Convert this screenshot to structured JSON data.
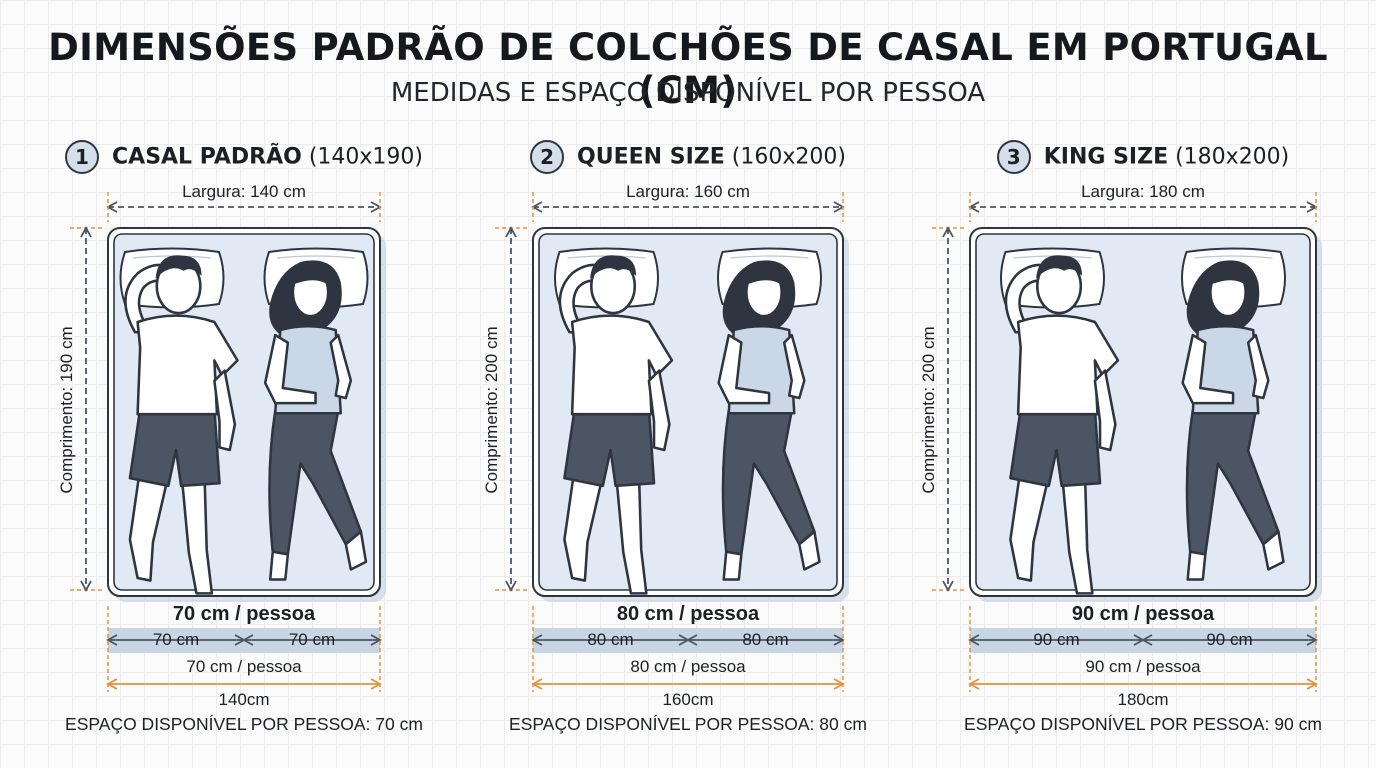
{
  "title": "DIMENSÕES PADRÃO DE COLCHÕES DE CASAL EM PORTUGAL (CM)",
  "subtitle": "MEDIDAS E ESPAÇO DISPONÍVEL POR PESSOA",
  "colors": {
    "mattress": "#e1eaf4",
    "outline": "#2e3540",
    "dim_dark": "#4a5563",
    "dim_orange": "#e8913a",
    "shirt": "#ffffff",
    "pants": "#4b5563",
    "woman_top": "#c9d7e6",
    "band": "#c8d6e4"
  },
  "panels": [
    {
      "number": "1",
      "name": "CASAL PADRÃO",
      "dims": "(140x190)",
      "width_label": "Largura: 140 cm",
      "length_label": "Comprimento: 190 cm",
      "per_person_bold": "70 cm / pessoa",
      "half_left": "70 cm",
      "half_right": "70 cm",
      "per_person": "70 cm / pessoa",
      "total": "140cm",
      "space_text": "ESPAÇO DISPONÍVEL POR PESSOA: 70 cm",
      "icons": [
        "man-sleeping-icon",
        "woman-sleeping-icon",
        "pillow-icon"
      ]
    },
    {
      "number": "2",
      "name": "QUEEN SIZE",
      "dims": "(160x200)",
      "width_label": "Largura: 160 cm",
      "length_label": "Comprimento: 200 cm",
      "per_person_bold": "80 cm / pessoa",
      "half_left": "80 cm",
      "half_right": "80 cm",
      "per_person": "80 cm / pessoa",
      "total": "160cm",
      "space_text": "ESPAÇO DISPONÍVEL POR PESSOA: 80 cm",
      "icons": [
        "man-sleeping-icon",
        "woman-sleeping-icon",
        "pillow-icon"
      ]
    },
    {
      "number": "3",
      "name": "KING SIZE",
      "dims": "(180x200)",
      "width_label": "Largura: 180 cm",
      "length_label": "Comprimento: 200 cm",
      "per_person_bold": "90 cm / pessoa",
      "half_left": "90 cm",
      "half_right": "90 cm",
      "per_person": "90 cm / pessoa",
      "total": "180cm",
      "space_text": "ESPAÇO DISPONÍVEL POR PESSOA: 90 cm",
      "icons": [
        "man-sleeping-icon",
        "woman-sleeping-icon",
        "pillow-icon"
      ]
    }
  ]
}
